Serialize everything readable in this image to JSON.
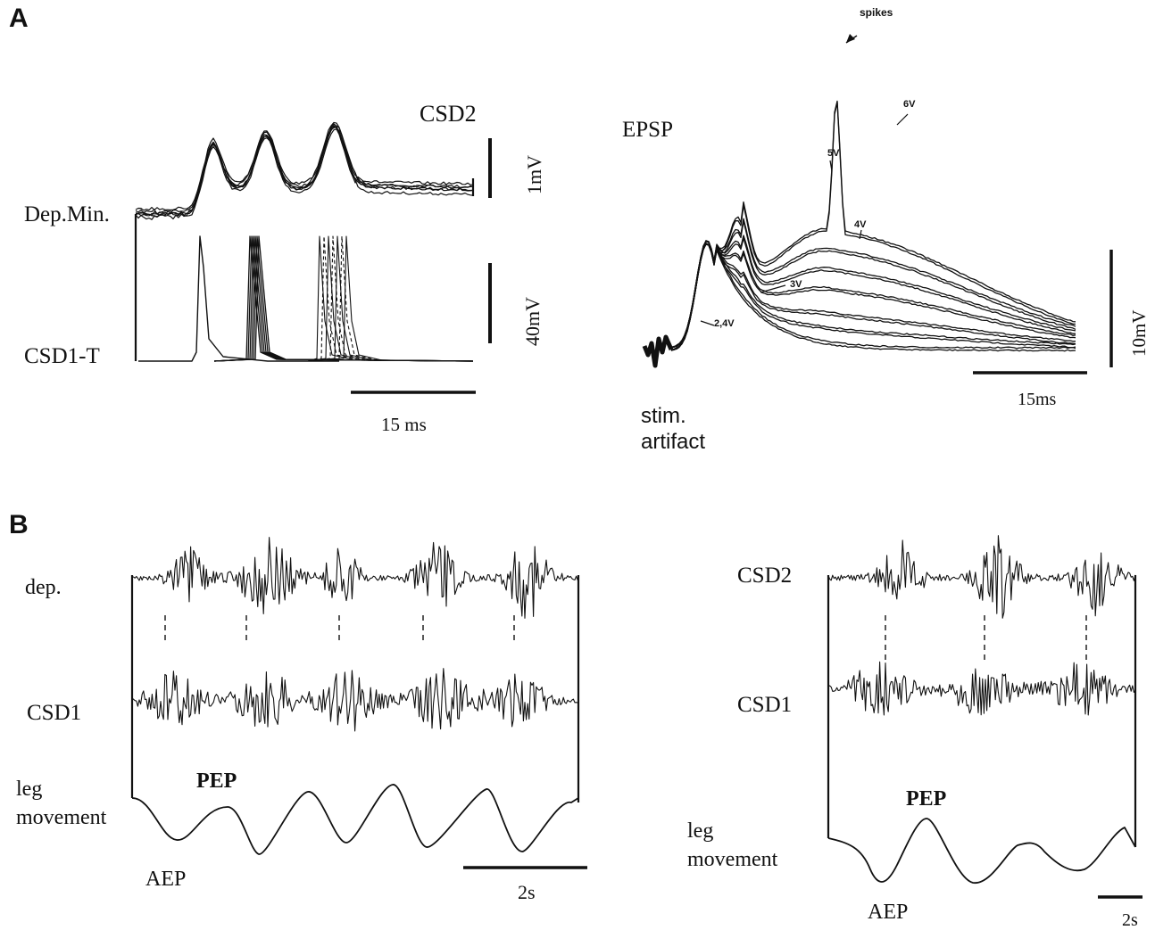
{
  "panel_a": {
    "letter": "A",
    "left": {
      "csd2": "CSD2",
      "dep_min": "Dep.Min.",
      "csd1_t": "CSD1-T",
      "scale_1mv": "1mV",
      "scale_40mv": "40mV",
      "scale_time": "15 ms"
    },
    "right": {
      "epsp": "EPSP",
      "spikes": "spikes",
      "v6": "6V",
      "v5": "5V",
      "v4": "4V",
      "v3": "3V",
      "v24": "2,4V",
      "stim_line1": "stim.",
      "stim_line2": "artifact",
      "scale_voltage": "10mV",
      "scale_time": "15ms"
    }
  },
  "panel_b": {
    "letter": "B",
    "left": {
      "dep": "dep.",
      "csd1": "CSD1",
      "leg_line1": "leg",
      "leg_line2": "movement",
      "pep": "PEP",
      "aep": "AEP",
      "scale_time": "2s"
    },
    "right": {
      "csd2": "CSD2",
      "csd1": "CSD1",
      "leg_line1": "leg",
      "leg_line2": "movement",
      "pep": "PEP",
      "aep": "AEP",
      "scale_time": "2s"
    }
  },
  "colors": {
    "ink": "#111111",
    "background": "#ffffff"
  }
}
